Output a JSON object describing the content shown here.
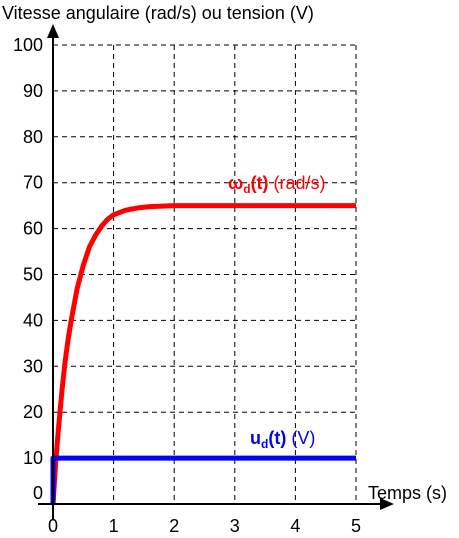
{
  "chart_data": {
    "type": "line",
    "ylabel": "Vitesse angulaire (rad/s) ou tension (V)",
    "xlabel": "Temps (s)",
    "xlim": [
      0,
      5
    ],
    "ylim": [
      0,
      100
    ],
    "x_ticks": [
      "0",
      "1",
      "2",
      "3",
      "4",
      "5"
    ],
    "y_ticks": [
      "0",
      "10",
      "20",
      "30",
      "40",
      "50",
      "60",
      "70",
      "80",
      "90",
      "100"
    ],
    "grid": true,
    "series": [
      {
        "name": "ω",
        "name_subscript": "d",
        "name_arg": "(t)",
        "name_unit": "(rad/s)",
        "color": "#ff0000",
        "x": [
          0,
          0.05,
          0.1,
          0.15,
          0.2,
          0.25,
          0.3,
          0.4,
          0.5,
          0.6,
          0.7,
          0.8,
          0.9,
          1.0,
          1.2,
          1.4,
          1.6,
          1.8,
          2.0,
          2.5,
          3.0,
          3.5,
          4.0,
          4.5,
          5.0
        ],
        "values": [
          0,
          10,
          18,
          25,
          31,
          36,
          40,
          47,
          52,
          56,
          58.5,
          60.5,
          62,
          63,
          64,
          64.5,
          64.8,
          64.9,
          65,
          65,
          65,
          65,
          65,
          65,
          65
        ]
      },
      {
        "name": "u",
        "name_subscript": "d",
        "name_arg": "(t)",
        "name_unit": "(V)",
        "color": "#0000ff",
        "x": [
          0,
          0,
          5
        ],
        "values": [
          0,
          10,
          10
        ]
      }
    ]
  }
}
